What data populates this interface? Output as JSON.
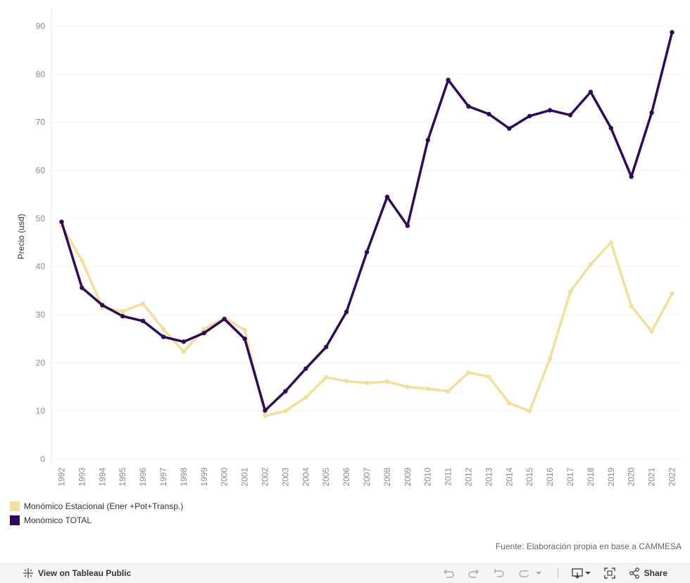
{
  "chart_data": {
    "type": "line",
    "title": "",
    "xlabel": "",
    "ylabel": "Precio (usd)",
    "ylim": [
      0,
      90
    ],
    "yticks": [
      0,
      10,
      20,
      30,
      40,
      50,
      60,
      70,
      80,
      90
    ],
    "grid": true,
    "categories": [
      "1992",
      "1993",
      "1994",
      "1995",
      "1996",
      "1997",
      "1998",
      "1999",
      "2000",
      "2001",
      "2002",
      "2003",
      "2004",
      "2005",
      "2006",
      "2007",
      "2008",
      "2009",
      "2010",
      "2011",
      "2012",
      "2013",
      "2014",
      "2015",
      "2016",
      "2017",
      "2018",
      "2019",
      "2020",
      "2021",
      "2022"
    ],
    "series": [
      {
        "name": "Monómico Estacional (Ener +Pot+Transp.)",
        "color": "#f2df9c",
        "values": [
          48.5,
          41.3,
          31.5,
          30.7,
          32.3,
          27.0,
          22.3,
          27.0,
          29.4,
          26.8,
          9.0,
          10.0,
          12.8,
          17.0,
          16.2,
          15.8,
          16.1,
          15.0,
          14.6,
          14.1,
          18.0,
          17.1,
          11.6,
          10.0,
          20.9,
          34.8,
          40.5,
          45.0,
          31.8,
          26.5,
          34.4
        ]
      },
      {
        "name": "Monómico TOTAL",
        "color": "#300a5a",
        "values": [
          49.3,
          35.6,
          32.0,
          29.7,
          28.7,
          25.4,
          24.4,
          26.2,
          29.1,
          25.0,
          10.1,
          14.1,
          18.8,
          23.3,
          30.6,
          43.0,
          54.5,
          48.5,
          66.3,
          78.8,
          73.3,
          71.7,
          68.7,
          71.3,
          72.5,
          71.5,
          76.3,
          68.8,
          58.7,
          72.0,
          88.7
        ]
      }
    ],
    "legend_position": "bottom-left"
  },
  "source_text": "Fuente: Elaboración propia en base a CAMMESA",
  "toolbar": {
    "view_label": "View on Tableau Public",
    "share_label": "Share"
  },
  "icons": {
    "tableau": "tableau-logo-icon",
    "undo": "undo-icon",
    "redo": "redo-icon",
    "revert": "revert-icon",
    "dropdown": "chevron-down-icon",
    "download": "download-icon",
    "fullscreen": "fullscreen-icon",
    "share": "share-icon"
  }
}
